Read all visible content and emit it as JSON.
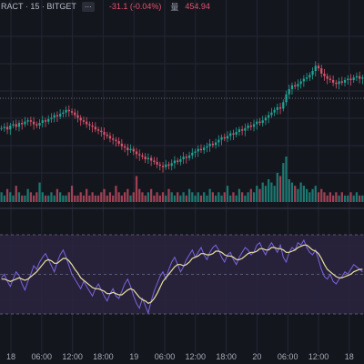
{
  "header": {
    "symbol": "RACT · 15 · BITGET",
    "dots_icon": "more-dots-icon",
    "change": "-31.1 (-0.04%)",
    "volume_label": "量",
    "volume_value": "454.94"
  },
  "time_axis": {
    "labels": [
      "18",
      "06:00",
      "12:00",
      "18:00",
      "19",
      "06:00",
      "12:00",
      "18:00",
      "20",
      "06:00",
      "12:00",
      "18"
    ]
  },
  "colors": {
    "background": "#14161e",
    "up": "#1fa393",
    "down": "#d9546b",
    "rsi_line": "#7c63e0",
    "rsi_ma": "#e8e1a0",
    "rsi_band": "#2a2440",
    "grid": "#232634"
  },
  "chart_data": [
    {
      "type": "candlestick",
      "panel": "price",
      "title": "",
      "values": [
        52,
        53,
        51,
        54,
        55,
        53,
        56,
        55,
        57,
        58,
        57,
        55,
        54,
        56,
        58,
        57,
        59,
        60,
        62,
        61,
        63,
        64,
        66,
        65,
        64,
        62,
        60,
        58,
        57,
        55,
        54,
        53,
        51,
        50,
        49,
        47,
        46,
        44,
        43,
        42,
        40,
        38,
        37,
        35,
        36,
        34,
        32,
        31,
        30,
        28,
        29,
        27,
        26,
        24,
        23,
        22,
        24,
        23,
        25,
        27,
        26,
        28,
        30,
        29,
        31,
        33,
        34,
        36,
        35,
        37,
        38,
        40,
        39,
        41,
        43,
        45,
        44,
        46,
        48,
        47,
        49,
        51,
        50,
        52,
        54,
        53,
        55,
        57,
        56,
        58,
        60,
        62,
        64,
        66,
        68,
        67,
        72,
        78,
        82,
        85,
        84,
        86,
        88,
        90,
        91,
        93,
        96,
        100,
        98,
        94,
        92,
        90,
        89,
        87,
        86,
        88,
        87,
        89,
        90,
        89,
        91,
        92,
        90,
        91
      ]
    },
    {
      "type": "bar",
      "panel": "volume",
      "values": [
        3,
        2,
        4,
        3,
        2,
        5,
        3,
        2,
        2,
        4,
        3,
        2,
        3,
        6,
        3,
        2,
        2,
        3,
        2,
        4,
        3,
        2,
        2,
        3,
        5,
        2,
        2,
        3,
        2,
        4,
        2,
        3,
        2,
        2,
        3,
        4,
        2,
        3,
        2,
        5,
        3,
        2,
        3,
        4,
        2,
        3,
        8,
        4,
        3,
        2,
        3,
        4,
        2,
        3,
        2,
        3,
        2,
        4,
        3,
        2,
        3,
        2,
        3,
        2,
        4,
        3,
        2,
        3,
        2,
        3,
        2,
        4,
        3,
        2,
        3,
        2,
        3,
        5,
        2,
        3,
        2,
        4,
        3,
        2,
        3,
        4,
        3,
        5,
        4,
        6,
        5,
        7,
        6,
        5,
        9,
        8,
        12,
        14,
        7,
        6,
        5,
        4,
        6,
        5,
        4,
        3,
        4,
        5,
        3,
        4,
        3,
        2,
        3,
        2,
        3,
        2,
        3,
        2,
        2,
        3,
        2,
        3,
        2,
        2
      ]
    },
    {
      "type": "line",
      "panel": "oscillator",
      "series": [
        {
          "values": [
            45,
            48,
            42,
            38,
            44,
            50,
            47,
            40,
            35,
            42,
            48,
            55,
            52,
            58,
            62,
            65,
            60,
            55,
            50,
            58,
            64,
            68,
            62,
            55,
            48,
            44,
            40,
            36,
            42,
            38,
            34,
            30,
            36,
            40,
            35,
            30,
            26,
            32,
            36,
            30,
            28,
            34,
            40,
            44,
            38,
            30,
            24,
            20,
            28,
            22,
            16,
            26,
            34,
            40,
            46,
            50,
            44,
            52,
            58,
            62,
            56,
            50,
            54,
            60,
            64,
            68,
            62,
            66,
            70,
            64,
            60,
            66,
            70,
            72,
            68,
            62,
            58,
            64,
            66,
            60,
            56,
            62,
            66,
            70,
            68,
            64,
            66,
            72,
            74,
            68,
            64,
            70,
            74,
            70,
            66,
            72,
            62,
            58,
            66,
            70,
            68,
            74,
            72,
            76,
            70,
            66,
            64,
            68,
            60,
            52,
            46,
            44,
            48,
            42,
            40,
            44,
            46,
            50,
            48,
            52,
            56,
            54,
            52,
            50
          ]
        },
        {
          "values": [
            44,
            44,
            43,
            42,
            43,
            44,
            45,
            44,
            43,
            44,
            46,
            48,
            50,
            53,
            56,
            59,
            60,
            59,
            57,
            57,
            59,
            61,
            61,
            59,
            56,
            52,
            49,
            45,
            43,
            41,
            39,
            37,
            36,
            36,
            35,
            34,
            32,
            32,
            33,
            32,
            31,
            31,
            33,
            35,
            36,
            35,
            32,
            29,
            27,
            26,
            24,
            25,
            28,
            32,
            37,
            42,
            45,
            48,
            51,
            54,
            56,
            56,
            55,
            56,
            58,
            61,
            62,
            63,
            65,
            65,
            64,
            64,
            65,
            67,
            67,
            66,
            64,
            63,
            63,
            62,
            60,
            60,
            61,
            63,
            65,
            66,
            66,
            67,
            69,
            69,
            68,
            68,
            70,
            70,
            69,
            69,
            68,
            66,
            66,
            67,
            68,
            70,
            71,
            72,
            72,
            70,
            68,
            67,
            65,
            61,
            56,
            52,
            50,
            48,
            46,
            45,
            45,
            46,
            47,
            48,
            50,
            51,
            52,
            52
          ]
        }
      ]
    }
  ]
}
